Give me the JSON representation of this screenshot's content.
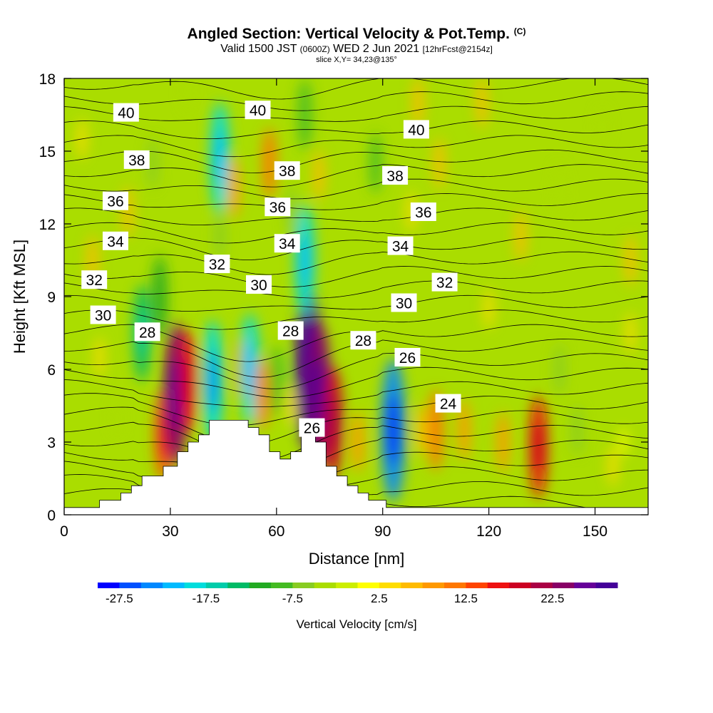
{
  "header": {
    "title": "Angled Section: Vertical Velocity & Pot.Temp.",
    "copyright": "(C)",
    "valid_prefix": "Valid 1500 JST",
    "valid_utc": "(0600Z)",
    "valid_date": "WED 2 Jun 2021",
    "forecast": "[12hrFcst@2154z]",
    "slice": "slice X,Y= 34,23@135°"
  },
  "chart_data": {
    "type": "heatmap",
    "xlabel": "Distance [nm]",
    "ylabel": "Height [Kft MSL]",
    "xlim": [
      0,
      165
    ],
    "ylim": [
      0,
      18
    ],
    "xticks": [
      "0",
      "30",
      "60",
      "90",
      "120",
      "150"
    ],
    "yticks": [
      "0",
      "3",
      "6",
      "9",
      "12",
      "15",
      "18"
    ],
    "colorbar": {
      "label": "Vertical Velocity [cm/s]",
      "min": -30,
      "max": 30,
      "step": 2.5,
      "tick_labels": [
        "-27.5",
        "-17.5",
        "-7.5",
        "2.5",
        "12.5",
        "22.5"
      ],
      "colors": [
        "#0000ff",
        "#0050ff",
        "#0088ff",
        "#00bbff",
        "#00dddd",
        "#00ccaa",
        "#00bb66",
        "#22aa22",
        "#44bb22",
        "#88cc22",
        "#aadd00",
        "#ccee00",
        "#ffff00",
        "#ffdd00",
        "#ffbb00",
        "#ff9900",
        "#ff7700",
        "#ff4400",
        "#ee1111",
        "#cc0022",
        "#aa0044",
        "#880066",
        "#660099",
        "#440099"
      ]
    },
    "terrain_kft": [
      [
        0,
        0.3
      ],
      [
        10,
        0.3
      ],
      [
        10,
        0.6
      ],
      [
        16,
        0.6
      ],
      [
        16,
        0.9
      ],
      [
        19,
        0.9
      ],
      [
        19,
        1.2
      ],
      [
        22,
        1.2
      ],
      [
        22,
        1.6
      ],
      [
        28,
        1.6
      ],
      [
        28,
        2.0
      ],
      [
        32,
        2.0
      ],
      [
        32,
        2.6
      ],
      [
        35,
        2.6
      ],
      [
        35,
        3.0
      ],
      [
        38,
        3.0
      ],
      [
        38,
        3.3
      ],
      [
        41,
        3.3
      ],
      [
        41,
        3.9
      ],
      [
        52,
        3.9
      ],
      [
        52,
        3.6
      ],
      [
        55,
        3.6
      ],
      [
        55,
        3.3
      ],
      [
        58,
        3.3
      ],
      [
        58,
        2.6
      ],
      [
        61,
        2.6
      ],
      [
        61,
        2.3
      ],
      [
        64,
        2.3
      ],
      [
        64,
        2.6
      ],
      [
        67,
        2.6
      ],
      [
        67,
        3.6
      ],
      [
        71,
        3.6
      ],
      [
        71,
        3.0
      ],
      [
        74,
        3.0
      ],
      [
        74,
        2.0
      ],
      [
        77,
        2.0
      ],
      [
        77,
        1.6
      ],
      [
        80,
        1.6
      ],
      [
        80,
        1.2
      ],
      [
        83,
        1.2
      ],
      [
        83,
        0.9
      ],
      [
        86,
        0.9
      ],
      [
        86,
        0.6
      ],
      [
        91,
        0.6
      ],
      [
        91,
        0.3
      ],
      [
        165,
        0.3
      ]
    ],
    "velocity_cells": [
      {
        "x": 28,
        "y": 3.3,
        "v": 14
      },
      {
        "x": 31.5,
        "y": 5.0,
        "v": 24
      },
      {
        "x": 35,
        "y": 5.5,
        "v": 16
      },
      {
        "x": 42,
        "y": 5.5,
        "v": -20
      },
      {
        "x": 50,
        "y": 6.0,
        "v": 8
      },
      {
        "x": 52.5,
        "y": 6.0,
        "v": -18
      },
      {
        "x": 56,
        "y": 5.0,
        "v": 10
      },
      {
        "x": 60,
        "y": 5.5,
        "v": -10
      },
      {
        "x": 64,
        "y": 4.5,
        "v": 4
      },
      {
        "x": 69,
        "y": 6.0,
        "v": 28
      },
      {
        "x": 72,
        "y": 5.0,
        "v": 24
      },
      {
        "x": 76,
        "y": 3.8,
        "v": 18
      },
      {
        "x": 83,
        "y": 3.0,
        "v": 8
      },
      {
        "x": 93,
        "y": 3.5,
        "v": -24
      },
      {
        "x": 101,
        "y": 3.5,
        "v": 6
      },
      {
        "x": 105,
        "y": 3.5,
        "v": 12
      },
      {
        "x": 113,
        "y": 3.5,
        "v": 8
      },
      {
        "x": 124,
        "y": 3.0,
        "v": 8
      },
      {
        "x": 134,
        "y": 2.8,
        "v": 16
      },
      {
        "x": 145,
        "y": 3.5,
        "v": -6
      },
      {
        "x": 158,
        "y": 3.0,
        "v": 2
      },
      {
        "x": 22,
        "y": 7.5,
        "v": -15
      },
      {
        "x": 27,
        "y": 9.0,
        "v": -12
      },
      {
        "x": 44,
        "y": 14.7,
        "v": -18
      },
      {
        "x": 44,
        "y": 11.5,
        "v": -6
      },
      {
        "x": 48,
        "y": 13.5,
        "v": 8
      },
      {
        "x": 58,
        "y": 14.5,
        "v": 10
      },
      {
        "x": 64,
        "y": 12.5,
        "v": -6
      },
      {
        "x": 68,
        "y": 10.5,
        "v": -18
      },
      {
        "x": 68,
        "y": 16.5,
        "v": -10
      },
      {
        "x": 72,
        "y": 14.0,
        "v": 6
      },
      {
        "x": 88,
        "y": 14.5,
        "v": -8
      },
      {
        "x": 98,
        "y": 12.5,
        "v": 4
      },
      {
        "x": 100,
        "y": 17.0,
        "v": 6
      },
      {
        "x": 106,
        "y": 14.5,
        "v": 6
      },
      {
        "x": 8,
        "y": 10.5,
        "v": 6
      },
      {
        "x": 18,
        "y": 12.5,
        "v": 6
      },
      {
        "x": 25,
        "y": 14.5,
        "v": -6
      },
      {
        "x": 15,
        "y": 4.0,
        "v": -3
      },
      {
        "x": 10,
        "y": 6.5,
        "v": 4
      },
      {
        "x": 129,
        "y": 11.5,
        "v": 6
      },
      {
        "x": 140,
        "y": 13.5,
        "v": -5
      },
      {
        "x": 152,
        "y": 16.0,
        "v": -4
      },
      {
        "x": 160,
        "y": 10.5,
        "v": 6
      },
      {
        "x": 140,
        "y": 6.0,
        "v": -6
      },
      {
        "x": 120,
        "y": 8.5,
        "v": 4
      },
      {
        "x": 118,
        "y": 17.0,
        "v": 6
      },
      {
        "x": 35,
        "y": 17.5,
        "v": -4
      },
      {
        "x": 160,
        "y": 7.5,
        "v": 4
      },
      {
        "x": 5,
        "y": 15.5,
        "v": 4
      },
      {
        "x": 155,
        "y": 2.0,
        "v": 4
      }
    ],
    "isentrope_labels": [
      {
        "text": "40",
        "x": 17.5,
        "y": 16.6
      },
      {
        "text": "38",
        "x": 20.5,
        "y": 14.65
      },
      {
        "text": "36",
        "x": 14.5,
        "y": 12.95
      },
      {
        "text": "34",
        "x": 14.5,
        "y": 11.3
      },
      {
        "text": "32",
        "x": 8.5,
        "y": 9.7
      },
      {
        "text": "30",
        "x": 11.0,
        "y": 8.25
      },
      {
        "text": "28",
        "x": 23.5,
        "y": 7.55
      },
      {
        "text": "40",
        "x": 54.7,
        "y": 16.7
      },
      {
        "text": "38",
        "x": 63.0,
        "y": 14.2
      },
      {
        "text": "36",
        "x": 60.3,
        "y": 12.7
      },
      {
        "text": "34",
        "x": 63.0,
        "y": 11.2
      },
      {
        "text": "32",
        "x": 43.2,
        "y": 10.35
      },
      {
        "text": "30",
        "x": 55.0,
        "y": 9.5
      },
      {
        "text": "28",
        "x": 64.0,
        "y": 7.6
      },
      {
        "text": "40",
        "x": 99.5,
        "y": 15.9
      },
      {
        "text": "38",
        "x": 93.5,
        "y": 14.0
      },
      {
        "text": "36",
        "x": 101.5,
        "y": 12.5
      },
      {
        "text": "34",
        "x": 95.0,
        "y": 11.1
      },
      {
        "text": "32",
        "x": 107.5,
        "y": 9.6
      },
      {
        "text": "30",
        "x": 96.0,
        "y": 8.75
      },
      {
        "text": "28",
        "x": 84.5,
        "y": 7.2
      },
      {
        "text": "26",
        "x": 97.0,
        "y": 6.5
      },
      {
        "text": "24",
        "x": 108.5,
        "y": 4.6
      },
      {
        "text": "26",
        "x": 70.0,
        "y": 3.6
      }
    ]
  }
}
